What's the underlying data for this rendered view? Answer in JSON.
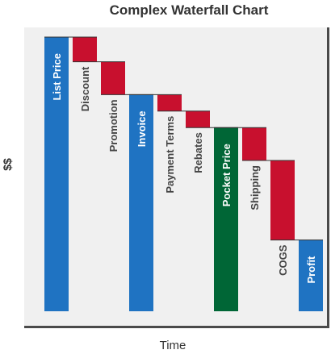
{
  "chart_data": {
    "type": "bar",
    "subtype": "waterfall",
    "title": "Complex Waterfall Chart",
    "xlabel": "Time",
    "ylabel": "$$",
    "ylim": [
      0,
      100
    ],
    "grid": false,
    "legend": "none",
    "colors": {
      "total": "#1f73c2",
      "subtotal_pocket": "#006636",
      "decrease": "#c8102e",
      "plot_bg": "#f0f0f0",
      "frame": "#4a4a4a"
    },
    "categories": [
      "List Price",
      "Discount",
      "Promotion",
      "Invoice",
      "Payment Terms",
      "Rebates",
      "Pocket Price",
      "Shipping",
      "COGS",
      "Profit"
    ],
    "bars": [
      {
        "category": "List Price",
        "kind": "total",
        "start": 0,
        "end": 100
      },
      {
        "category": "Discount",
        "kind": "decrease",
        "start": 100,
        "end": 91
      },
      {
        "category": "Promotion",
        "kind": "decrease",
        "start": 91,
        "end": 79
      },
      {
        "category": "Invoice",
        "kind": "total",
        "start": 0,
        "end": 79
      },
      {
        "category": "Payment Terms",
        "kind": "decrease",
        "start": 79,
        "end": 73
      },
      {
        "category": "Rebates",
        "kind": "decrease",
        "start": 73,
        "end": 67
      },
      {
        "category": "Pocket Price",
        "kind": "subtotal_pocket",
        "start": 0,
        "end": 67
      },
      {
        "category": "Shipping",
        "kind": "decrease",
        "start": 67,
        "end": 55
      },
      {
        "category": "COGS",
        "kind": "decrease",
        "start": 55,
        "end": 26
      },
      {
        "category": "Profit",
        "kind": "total",
        "start": 0,
        "end": 26
      }
    ]
  }
}
